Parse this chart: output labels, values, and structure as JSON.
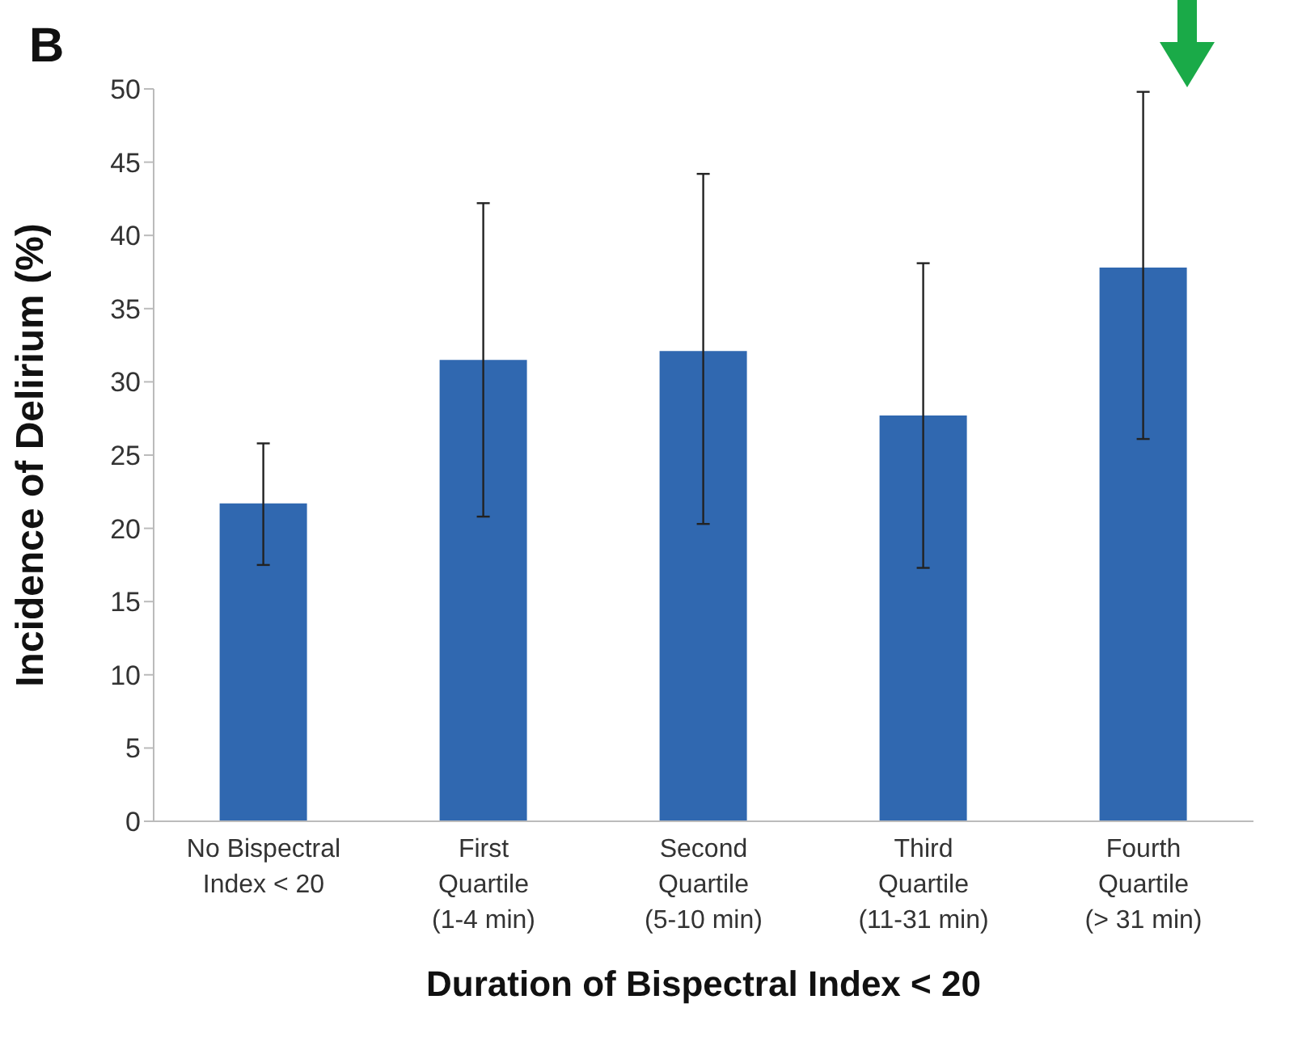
{
  "chart_data": {
    "type": "bar",
    "xlabel": "Duration of Bispectral Index < 20",
    "ylabel": "Incidence of Delirium (%)",
    "annotations": [
      "B"
    ],
    "categories": [
      "No Bispectral Index < 20",
      "First Quartile (1-4 min)",
      "Second Quartile (5-10 min)",
      "Third Quartile (11-31 min)",
      "Fourth Quartile (> 31 min)"
    ],
    "values": [
      21.7,
      31.5,
      32.1,
      27.7,
      37.8
    ],
    "errors": [
      [
        17.5,
        25.8
      ],
      [
        20.8,
        42.2
      ],
      [
        20.3,
        44.2
      ],
      [
        17.3,
        38.1
      ],
      [
        26.1,
        49.8
      ]
    ],
    "color": "#3068b0",
    "ylim": [
      0,
      50
    ],
    "yticks": [
      0,
      5,
      10,
      15,
      20,
      25,
      30,
      35,
      40,
      45,
      50
    ],
    "grid": false,
    "legend": false
  }
}
